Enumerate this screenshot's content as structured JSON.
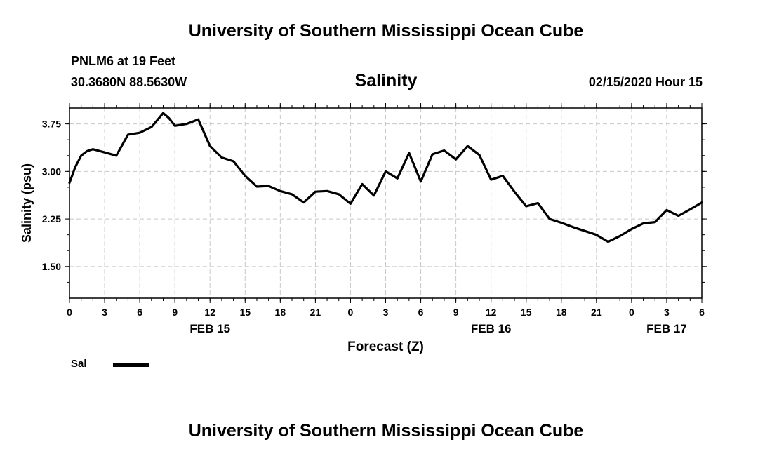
{
  "header": {
    "title": "University of Southern Mississippi Ocean Cube",
    "station": "PNLM6 at 19 Feet",
    "coordinates": "30.3680N 88.5630W",
    "date": "02/15/2020 Hour 15"
  },
  "footer": {
    "title": "University of Southern Mississippi Ocean Cube"
  },
  "chart_data": {
    "type": "line",
    "title": "Salinity",
    "xlabel": "Forecast (Z)",
    "ylabel": "Salinity (psu)",
    "ylim": [
      1.0,
      4.0
    ],
    "yticks": [
      1.5,
      2.25,
      3.0,
      3.75
    ],
    "ytick_labels": [
      "1.50",
      "2.25",
      "3.00",
      "3.75"
    ],
    "xlim": [
      0,
      54
    ],
    "xticks": [
      0,
      3,
      6,
      9,
      12,
      15,
      18,
      21,
      24,
      27,
      30,
      33,
      36,
      39,
      42,
      45,
      48,
      51,
      54
    ],
    "xtick_labels": [
      "0",
      "3",
      "6",
      "9",
      "12",
      "15",
      "18",
      "21",
      "0",
      "3",
      "6",
      "9",
      "12",
      "15",
      "18",
      "21",
      "0",
      "3",
      "6"
    ],
    "date_labels": [
      {
        "x": 12,
        "text": "FEB 15"
      },
      {
        "x": 36,
        "text": "FEB 16"
      },
      {
        "x": 51,
        "text": "FEB 17"
      }
    ],
    "grid": true,
    "legend": {
      "position": "bottom-left"
    },
    "series": [
      {
        "name": "Sal",
        "color": "#000000",
        "x": [
          0,
          0.5,
          1,
          1.5,
          2,
          3,
          4,
          5,
          6,
          7,
          8,
          8.5,
          9,
          10,
          11,
          12,
          13,
          14,
          15,
          16,
          17,
          18,
          19,
          20,
          21,
          22,
          23,
          24,
          25,
          26,
          27,
          28,
          29,
          30,
          31,
          32,
          33,
          34,
          35,
          36,
          37,
          38,
          39,
          40,
          41,
          42,
          43,
          44,
          45,
          46,
          47,
          48,
          49,
          50,
          51,
          52,
          53,
          54
        ],
        "y": [
          2.82,
          3.07,
          3.25,
          3.32,
          3.35,
          3.3,
          3.25,
          3.58,
          3.61,
          3.7,
          3.92,
          3.84,
          3.72,
          3.75,
          3.82,
          3.4,
          3.22,
          3.16,
          2.93,
          2.76,
          2.77,
          2.69,
          2.64,
          2.51,
          2.68,
          2.69,
          2.64,
          2.49,
          2.8,
          2.62,
          3.0,
          2.89,
          3.29,
          2.84,
          3.27,
          3.33,
          3.19,
          3.4,
          3.26,
          2.87,
          2.93,
          2.68,
          2.45,
          2.5,
          2.25,
          2.19,
          2.12,
          2.06,
          2.0,
          1.89,
          1.98,
          2.09,
          2.18,
          2.2,
          2.39,
          2.3,
          2.4,
          2.51
        ]
      }
    ]
  }
}
